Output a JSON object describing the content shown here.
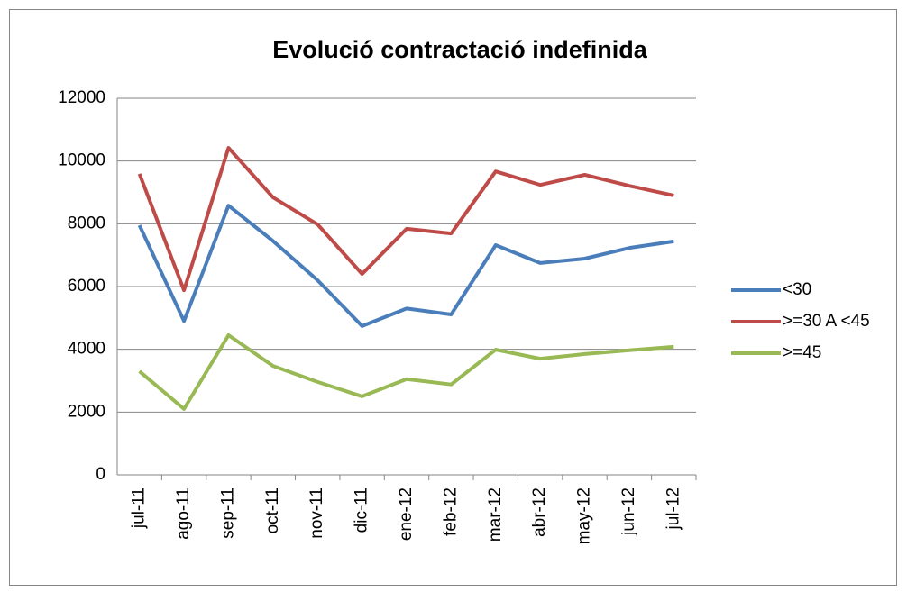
{
  "chart_data": {
    "type": "line",
    "title": "Evolució contractació indefinida",
    "categories": [
      "jul-11",
      "ago-11",
      "sep-11",
      "oct-11",
      "nov-11",
      "dic-11",
      "ene-12",
      "feb-12",
      "mar-12",
      "abr-12",
      "may-12",
      "jun-12",
      "jul-12"
    ],
    "series": [
      {
        "name": "<30",
        "color": "#4a7ebb",
        "values": [
          7950,
          4900,
          8580,
          7450,
          6200,
          4740,
          5300,
          5110,
          7320,
          6750,
          6890,
          7230,
          7440
        ]
      },
      {
        "name": ">=30 A <45",
        "color": "#be4b48",
        "values": [
          9590,
          5880,
          10420,
          8840,
          7980,
          6400,
          7840,
          7690,
          9670,
          9240,
          9560,
          9210,
          8900
        ]
      },
      {
        "name": ">=45",
        "color": "#98b954",
        "values": [
          3300,
          2100,
          4450,
          3470,
          2960,
          2500,
          3050,
          2880,
          3990,
          3700,
          3850,
          3970,
          4080
        ]
      }
    ],
    "ylim": [
      0,
      12000
    ],
    "yticks": [
      0,
      2000,
      4000,
      6000,
      8000,
      10000,
      12000
    ],
    "grid": true,
    "legend": "right"
  }
}
